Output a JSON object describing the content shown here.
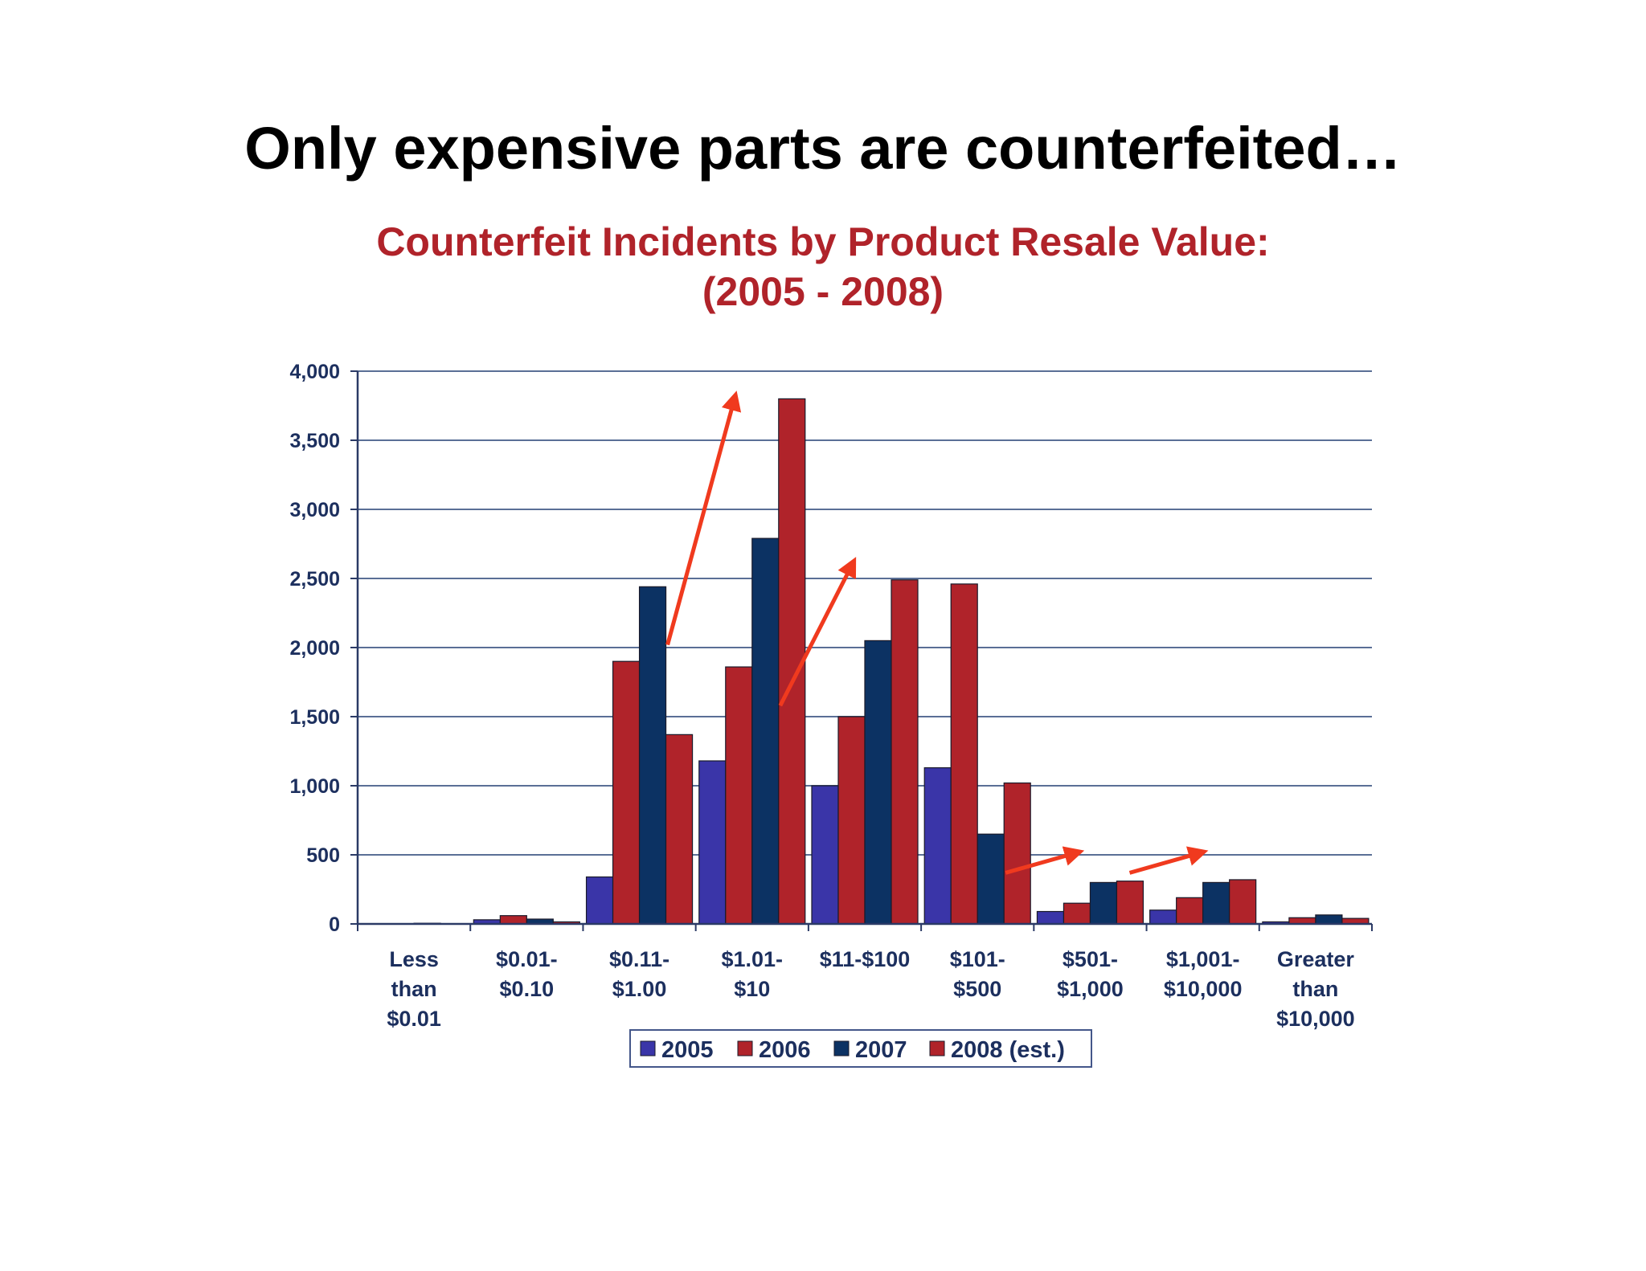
{
  "slide": {
    "title": "Only expensive parts are counterfeited…"
  },
  "chart_data": {
    "type": "bar",
    "title": "Counterfeit Incidents by Product Resale Value:",
    "subtitle": "(2005 - 2008)",
    "xlabel": "",
    "ylabel": "",
    "ylim": [
      0,
      4000
    ],
    "yticks": [
      0,
      500,
      1000,
      1500,
      2000,
      2500,
      3000,
      3500,
      4000
    ],
    "ytick_labels": [
      "0",
      "500",
      "1,000",
      "1,500",
      "2,000",
      "2,500",
      "3,000",
      "3,500",
      "4,000"
    ],
    "grid": true,
    "legend_position": "bottom",
    "categories": [
      [
        "Less",
        "than",
        "$0.01"
      ],
      [
        "$0.01-",
        "$0.10"
      ],
      [
        "$0.11-",
        "$1.00"
      ],
      [
        "$1.01-",
        "$10"
      ],
      [
        "$11-$100"
      ],
      [
        "$101-",
        "$500"
      ],
      [
        "$501-",
        "$1,000"
      ],
      [
        "$1,001-",
        "$10,000"
      ],
      [
        "Greater",
        "than",
        "$10,000"
      ]
    ],
    "series": [
      {
        "name": "2005",
        "color": "#3a35a8",
        "values": [
          0,
          30,
          340,
          1180,
          1000,
          1130,
          90,
          100,
          15
        ]
      },
      {
        "name": "2006",
        "color": "#b0232a",
        "values": [
          0,
          60,
          1900,
          1860,
          1500,
          2460,
          150,
          190,
          45
        ]
      },
      {
        "name": "2007",
        "color": "#0c3263",
        "values": [
          5,
          35,
          2440,
          2790,
          2050,
          650,
          300,
          300,
          65
        ]
      },
      {
        "name": "2008 (est.)",
        "color": "#b0232a",
        "values": [
          0,
          15,
          1370,
          3800,
          2490,
          1020,
          310,
          320,
          40
        ]
      }
    ],
    "annotations": [
      {
        "type": "arrow",
        "color": "#f03a1e",
        "from": {
          "x": 2.75,
          "y": 2020
        },
        "to": {
          "x": 3.35,
          "y": 3820
        }
      },
      {
        "type": "arrow",
        "color": "#f03a1e",
        "from": {
          "x": 3.75,
          "y": 1580
        },
        "to": {
          "x": 4.4,
          "y": 2620
        }
      },
      {
        "type": "arrow",
        "color": "#f03a1e",
        "from": {
          "x": 5.75,
          "y": 370
        },
        "to": {
          "x": 6.4,
          "y": 520
        }
      },
      {
        "type": "arrow",
        "color": "#f03a1e",
        "from": {
          "x": 6.85,
          "y": 370
        },
        "to": {
          "x": 7.5,
          "y": 520
        }
      }
    ],
    "colors": {
      "tick_text": "#1c2f5e",
      "grid": "#5a6f96",
      "axis": "#2b3a66",
      "legend_border": "#44578a"
    }
  }
}
